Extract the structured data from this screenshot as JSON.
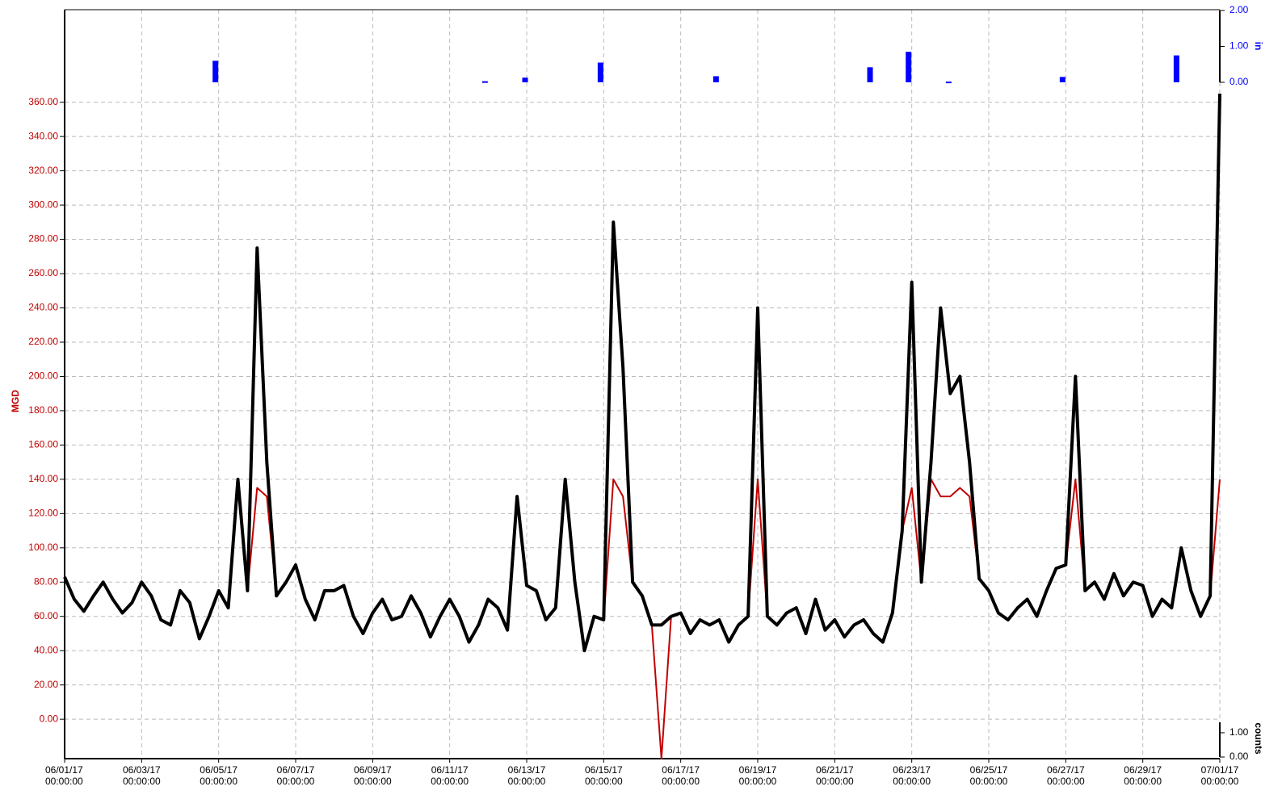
{
  "chart_data": {
    "type": "line",
    "x": [
      "2017-06-01T00:00",
      "2017-06-01T06:00",
      "2017-06-01T12:00",
      "2017-06-01T18:00",
      "2017-06-02T00:00",
      "2017-06-02T06:00",
      "2017-06-02T12:00",
      "2017-06-02T18:00",
      "2017-06-03T00:00",
      "2017-06-03T06:00",
      "2017-06-03T12:00",
      "2017-06-03T18:00",
      "2017-06-04T00:00",
      "2017-06-04T06:00",
      "2017-06-04T12:00",
      "2017-06-04T18:00",
      "2017-06-05T00:00",
      "2017-06-05T06:00",
      "2017-06-05T12:00",
      "2017-06-05T18:00",
      "2017-06-06T00:00",
      "2017-06-06T06:00",
      "2017-06-06T12:00",
      "2017-06-06T18:00",
      "2017-06-07T00:00",
      "2017-06-07T06:00",
      "2017-06-07T12:00",
      "2017-06-07T18:00",
      "2017-06-08T00:00",
      "2017-06-08T06:00",
      "2017-06-08T12:00",
      "2017-06-08T18:00",
      "2017-06-09T00:00",
      "2017-06-09T06:00",
      "2017-06-09T12:00",
      "2017-06-09T18:00",
      "2017-06-10T00:00",
      "2017-06-10T06:00",
      "2017-06-10T12:00",
      "2017-06-10T18:00",
      "2017-06-11T00:00",
      "2017-06-11T06:00",
      "2017-06-11T12:00",
      "2017-06-11T18:00",
      "2017-06-12T00:00",
      "2017-06-12T06:00",
      "2017-06-12T12:00",
      "2017-06-12T18:00",
      "2017-06-13T00:00",
      "2017-06-13T06:00",
      "2017-06-13T12:00",
      "2017-06-13T18:00",
      "2017-06-14T00:00",
      "2017-06-14T06:00",
      "2017-06-14T12:00",
      "2017-06-14T18:00",
      "2017-06-15T00:00",
      "2017-06-15T06:00",
      "2017-06-15T12:00",
      "2017-06-15T18:00",
      "2017-06-16T00:00",
      "2017-06-16T06:00",
      "2017-06-16T12:00",
      "2017-06-16T18:00",
      "2017-06-17T00:00",
      "2017-06-17T06:00",
      "2017-06-17T12:00",
      "2017-06-17T18:00",
      "2017-06-18T00:00",
      "2017-06-18T06:00",
      "2017-06-18T12:00",
      "2017-06-18T18:00",
      "2017-06-19T00:00",
      "2017-06-19T06:00",
      "2017-06-19T12:00",
      "2017-06-19T18:00",
      "2017-06-20T00:00",
      "2017-06-20T06:00",
      "2017-06-20T12:00",
      "2017-06-20T18:00",
      "2017-06-21T00:00",
      "2017-06-21T06:00",
      "2017-06-21T12:00",
      "2017-06-21T18:00",
      "2017-06-22T00:00",
      "2017-06-22T06:00",
      "2017-06-22T12:00",
      "2017-06-22T18:00",
      "2017-06-23T00:00",
      "2017-06-23T06:00",
      "2017-06-23T12:00",
      "2017-06-23T18:00",
      "2017-06-24T00:00",
      "2017-06-24T06:00",
      "2017-06-24T12:00",
      "2017-06-24T18:00",
      "2017-06-25T00:00",
      "2017-06-25T06:00",
      "2017-06-25T12:00",
      "2017-06-25T18:00",
      "2017-06-26T00:00",
      "2017-06-26T06:00",
      "2017-06-26T12:00",
      "2017-06-26T18:00",
      "2017-06-27T00:00",
      "2017-06-27T06:00",
      "2017-06-27T12:00",
      "2017-06-27T18:00",
      "2017-06-28T00:00",
      "2017-06-28T06:00",
      "2017-06-28T12:00",
      "2017-06-28T18:00",
      "2017-06-29T00:00",
      "2017-06-29T06:00",
      "2017-06-29T12:00",
      "2017-06-29T18:00",
      "2017-06-30T00:00",
      "2017-06-30T06:00",
      "2017-06-30T12:00",
      "2017-06-30T18:00",
      "2017-07-01T00:00"
    ],
    "xlim": [
      "2017-06-01T00:00",
      "2017-07-01T00:00"
    ],
    "xticks": [
      {
        "value": "2017-06-01T00:00",
        "label": [
          "06/01/17",
          "00:00:00"
        ]
      },
      {
        "value": "2017-06-03T00:00",
        "label": [
          "06/03/17",
          "00:00:00"
        ]
      },
      {
        "value": "2017-06-05T00:00",
        "label": [
          "06/05/17",
          "00:00:00"
        ]
      },
      {
        "value": "2017-06-07T00:00",
        "label": [
          "06/07/17",
          "00:00:00"
        ]
      },
      {
        "value": "2017-06-09T00:00",
        "label": [
          "06/09/17",
          "00:00:00"
        ]
      },
      {
        "value": "2017-06-11T00:00",
        "label": [
          "06/11/17",
          "00:00:00"
        ]
      },
      {
        "value": "2017-06-13T00:00",
        "label": [
          "06/13/17",
          "00:00:00"
        ]
      },
      {
        "value": "2017-06-15T00:00",
        "label": [
          "06/15/17",
          "00:00:00"
        ]
      },
      {
        "value": "2017-06-17T00:00",
        "label": [
          "06/17/17",
          "00:00:00"
        ]
      },
      {
        "value": "2017-06-19T00:00",
        "label": [
          "06/19/17",
          "00:00:00"
        ]
      },
      {
        "value": "2017-06-21T00:00",
        "label": [
          "06/21/17",
          "00:00:00"
        ]
      },
      {
        "value": "2017-06-23T00:00",
        "label": [
          "06/23/17",
          "00:00:00"
        ]
      },
      {
        "value": "2017-06-25T00:00",
        "label": [
          "06/25/17",
          "00:00:00"
        ]
      },
      {
        "value": "2017-06-27T00:00",
        "label": [
          "06/27/17",
          "00:00:00"
        ]
      },
      {
        "value": "2017-06-29T00:00",
        "label": [
          "06/29/17",
          "00:00:00"
        ]
      },
      {
        "value": "2017-07-01T00:00",
        "label": [
          "07/01/17",
          "00:00:00"
        ]
      }
    ],
    "y_label": "MGD",
    "ylim": [
      -23,
      414
    ],
    "yticks": [
      {
        "value": 0,
        "label": "0.00"
      },
      {
        "value": 20,
        "label": "20.00"
      },
      {
        "value": 40,
        "label": "40.00"
      },
      {
        "value": 60,
        "label": "60.00"
      },
      {
        "value": 80,
        "label": "80.00"
      },
      {
        "value": 100,
        "label": "100.00"
      },
      {
        "value": 120,
        "label": "120.00"
      },
      {
        "value": 140,
        "label": "140.00"
      },
      {
        "value": 160,
        "label": "160.00"
      },
      {
        "value": 180,
        "label": "180.00"
      },
      {
        "value": 200,
        "label": "200.00"
      },
      {
        "value": 220,
        "label": "220.00"
      },
      {
        "value": 240,
        "label": "240.00"
      },
      {
        "value": 260,
        "label": "260.00"
      },
      {
        "value": 280,
        "label": "280.00"
      },
      {
        "value": 300,
        "label": "300.00"
      },
      {
        "value": 320,
        "label": "320.00"
      },
      {
        "value": 340,
        "label": "340.00"
      },
      {
        "value": 360,
        "label": "360.00"
      }
    ],
    "y2_label": "in",
    "y2lim": [
      0,
      2
    ],
    "y2ticks": [
      {
        "value": 0,
        "label": "0.00"
      },
      {
        "value": 1,
        "label": "1.00"
      },
      {
        "value": 2,
        "label": "2.00"
      }
    ],
    "y3_label": "counts",
    "y3lim": [
      0,
      1.43
    ],
    "y3ticks": [
      {
        "value": 0,
        "label": "0.00"
      },
      {
        "value": 1,
        "label": "1.00"
      }
    ],
    "grid": true,
    "series": [
      {
        "color": "#c00000",
        "values": [
          83,
          70,
          63,
          72,
          80,
          70,
          62,
          68,
          80,
          72,
          58,
          55,
          75,
          68,
          47,
          60,
          75,
          65,
          140,
          75,
          135,
          130,
          72,
          80,
          90,
          70,
          58,
          75,
          75,
          78,
          60,
          50,
          62,
          70,
          58,
          60,
          72,
          62,
          48,
          60,
          70,
          60,
          45,
          55,
          70,
          65,
          52,
          130,
          78,
          75,
          58,
          65,
          140,
          80,
          40,
          60,
          58,
          140,
          130,
          80,
          72,
          55,
          -23,
          60,
          62,
          50,
          58,
          55,
          58,
          45,
          55,
          60,
          140,
          60,
          55,
          62,
          65,
          50,
          70,
          52,
          58,
          48,
          55,
          58,
          50,
          45,
          62,
          110,
          135,
          80,
          140,
          130,
          130,
          135,
          130,
          82,
          75,
          62,
          58,
          65,
          70,
          60,
          75,
          88,
          90,
          140,
          75,
          80,
          70,
          85,
          72,
          80,
          78,
          60,
          70,
          65,
          100,
          75,
          60,
          72,
          140
        ]
      },
      {
        "color": "#000000",
        "values": [
          83,
          70,
          63,
          72,
          80,
          70,
          62,
          68,
          80,
          72,
          58,
          55,
          75,
          68,
          47,
          60,
          75,
          65,
          140,
          75,
          275,
          150,
          72,
          80,
          90,
          70,
          58,
          75,
          75,
          78,
          60,
          50,
          62,
          70,
          58,
          60,
          72,
          62,
          48,
          60,
          70,
          60,
          45,
          55,
          70,
          65,
          52,
          130,
          78,
          75,
          58,
          65,
          140,
          80,
          40,
          60,
          58,
          290,
          205,
          80,
          72,
          55,
          55,
          60,
          62,
          50,
          58,
          55,
          58,
          45,
          55,
          60,
          240,
          60,
          55,
          62,
          65,
          50,
          70,
          52,
          58,
          48,
          55,
          58,
          50,
          45,
          62,
          110,
          255,
          80,
          150,
          240,
          190,
          200,
          150,
          82,
          75,
          62,
          58,
          65,
          70,
          60,
          75,
          88,
          90,
          200,
          75,
          80,
          70,
          85,
          72,
          80,
          78,
          60,
          70,
          65,
          100,
          75,
          60,
          72,
          365
        ]
      },
      {
        "type": "bar",
        "axis": "y2",
        "color": "#0000ff",
        "x": [
          "2017-06-04T22:00",
          "2017-06-11T22:00",
          "2017-06-12T23:00",
          "2017-06-14T22:00",
          "2017-06-17T22:00",
          "2017-06-21T22:00",
          "2017-06-22T22:00",
          "2017-06-23T23:00",
          "2017-06-26T22:00",
          "2017-06-29T21:00"
        ],
        "values": [
          0.6,
          0.03,
          0.13,
          0.55,
          0.17,
          0.42,
          0.85,
          0.02,
          0.15,
          0.75
        ]
      }
    ]
  }
}
